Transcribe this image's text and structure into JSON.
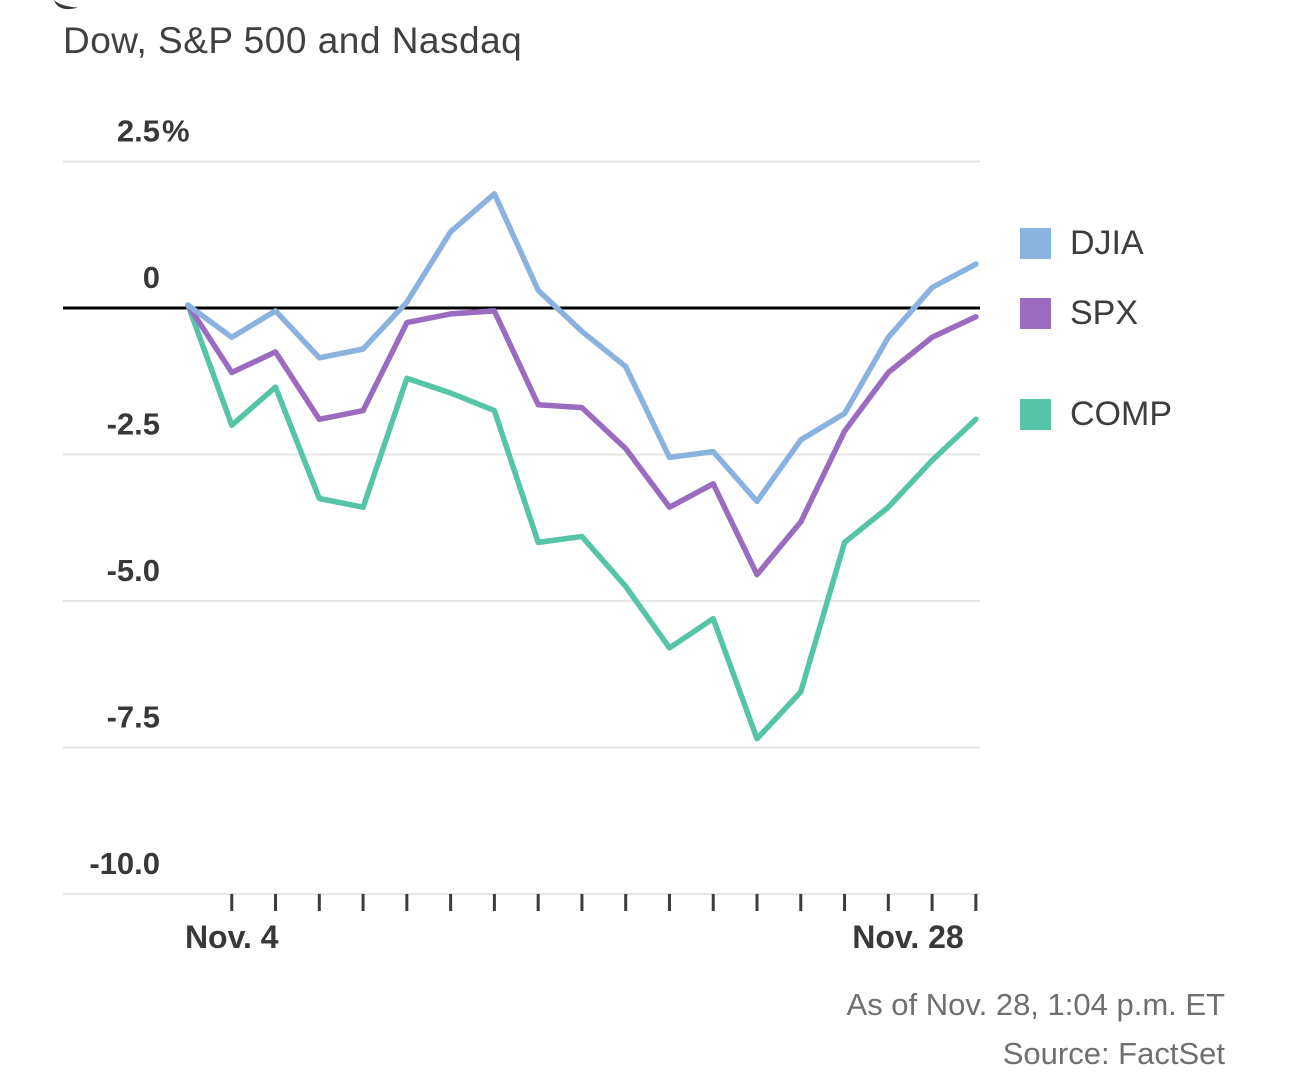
{
  "header": {
    "title": "Dow, S&P 500 and Nasdaq"
  },
  "legend": {
    "items": [
      {
        "label": "DJIA",
        "color": "#8AB2DF"
      },
      {
        "label": "SPX",
        "color": "#9B6BBF"
      },
      {
        "label": "COMP",
        "color": "#55C4A7"
      }
    ]
  },
  "footer": {
    "as_of": "As of Nov. 28, 1:04 p.m. ET",
    "source": "Source: FactSet"
  },
  "chart_data": {
    "type": "line",
    "title": "Dow, S&P 500 and Nasdaq",
    "unit": "percent change from start of period",
    "grid": true,
    "legend_position": "right",
    "ylim": [
      -10.5,
      2.8
    ],
    "baseline": 0,
    "y_ticks": [
      {
        "value": 2.5,
        "label": "2.5%"
      },
      {
        "value": 0,
        "label": "0"
      },
      {
        "value": -2.5,
        "label": "-2.5"
      },
      {
        "value": -5.0,
        "label": "-5.0"
      },
      {
        "value": -7.5,
        "label": "-7.5"
      },
      {
        "value": -10.0,
        "label": "-10.0"
      }
    ],
    "x_tick_labels": [
      "Nov. 4",
      "Nov. 28"
    ],
    "num_points": 19,
    "num_x_ticks": 18,
    "series": [
      {
        "name": "DJIA",
        "color": "#8AB2DF",
        "values": [
          0.05,
          -0.5,
          -0.05,
          -0.85,
          -0.7,
          0.1,
          1.3,
          1.95,
          0.3,
          -0.4,
          -1.0,
          -2.55,
          -2.45,
          -3.3,
          -2.25,
          -1.8,
          -0.5,
          0.35,
          0.75
        ]
      },
      {
        "name": "SPX",
        "color": "#9B6BBF",
        "values": [
          0.05,
          -1.1,
          -0.75,
          -1.9,
          -1.75,
          -0.25,
          -0.1,
          -0.05,
          -1.65,
          -1.7,
          -2.4,
          -3.4,
          -3.0,
          -4.55,
          -3.65,
          -2.1,
          -1.1,
          -0.5,
          -0.15
        ]
      },
      {
        "name": "COMP",
        "color": "#55C4A7",
        "values": [
          0.05,
          -2.0,
          -1.35,
          -3.25,
          -3.4,
          -1.2,
          -1.45,
          -1.75,
          -4.0,
          -3.9,
          -4.75,
          -5.8,
          -5.3,
          -7.35,
          -6.55,
          -4.0,
          -3.4,
          -2.6,
          -1.9
        ]
      }
    ]
  }
}
